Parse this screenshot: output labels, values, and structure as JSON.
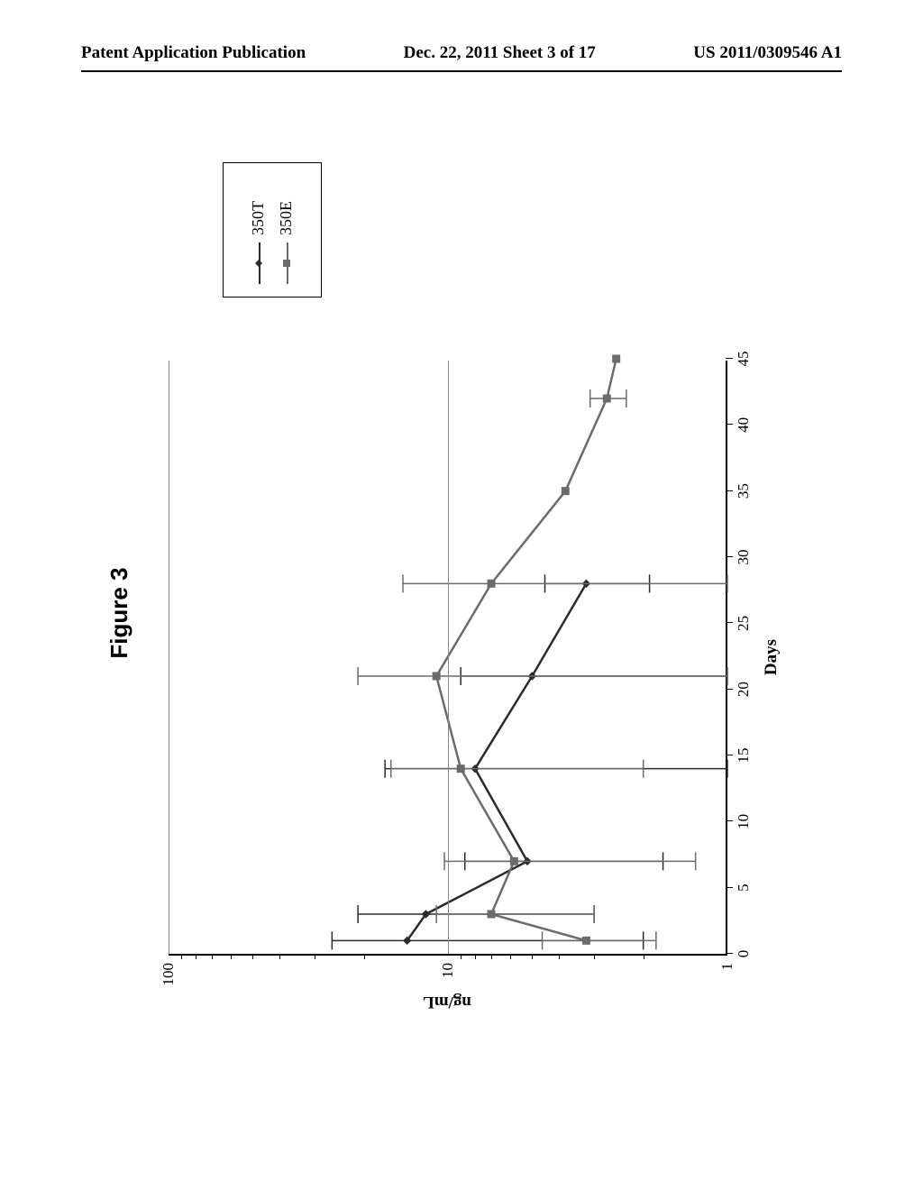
{
  "header": {
    "left": "Patent Application Publication",
    "center": "Dec. 22, 2011  Sheet 3 of 17",
    "right": "US 2011/0309546 A1"
  },
  "figure": {
    "title": "Figure 3",
    "title_fontsize": 26,
    "title_fontfamily": "Arial",
    "type": "line",
    "background_color": "#ffffff",
    "xlabel": "Days",
    "ylabel": "ng/mL",
    "label_fontsize": 19,
    "xlim": [
      0,
      45
    ],
    "xtick_step": 5,
    "xticks": [
      0,
      5,
      10,
      15,
      20,
      25,
      30,
      35,
      40,
      45
    ],
    "yscale": "log",
    "ylim": [
      1,
      100
    ],
    "yticks": [
      1,
      10,
      100
    ],
    "yminor": [
      2,
      3,
      4,
      5,
      6,
      7,
      8,
      9,
      20,
      30,
      40,
      50,
      60,
      70,
      80,
      90
    ],
    "grid_color": "#888888",
    "axis_color": "#000000",
    "tick_fontsize": 17,
    "line_width": 2.5,
    "marker_size": 8,
    "error_cap_width": 10,
    "series": [
      {
        "name": "350T",
        "label": "350T",
        "color": "#2b2b2b",
        "marker": "diamond",
        "x": [
          1,
          3,
          7,
          14,
          21,
          28
        ],
        "y": [
          14,
          12,
          5.2,
          8.0,
          5.0,
          3.2
        ],
        "yerr": [
          12,
          9,
          3.5,
          8.8,
          4.0,
          1.3
        ]
      },
      {
        "name": "350E",
        "label": "350E",
        "color": "#6b6b6b",
        "marker": "square",
        "x": [
          1,
          3,
          7,
          14,
          21,
          28,
          35,
          42,
          45
        ],
        "y": [
          3.2,
          7.0,
          5.8,
          9.0,
          11,
          7.0,
          3.8,
          2.7,
          2.5
        ],
        "yerr": [
          1.4,
          4.0,
          4.5,
          7.0,
          10,
          7.5,
          0,
          0.4,
          0
        ]
      }
    ],
    "legend": {
      "position": "right",
      "border_color": "#000000",
      "items": [
        {
          "series": "350T",
          "label": "350T"
        },
        {
          "series": "350E",
          "label": "350E"
        }
      ]
    }
  }
}
